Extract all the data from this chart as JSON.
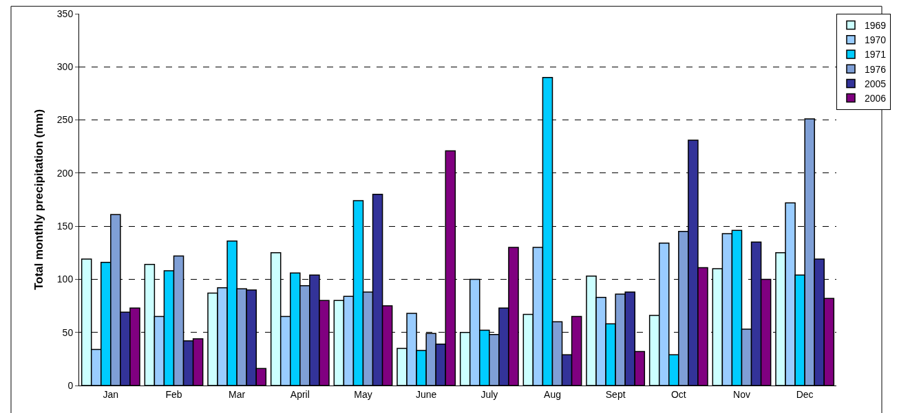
{
  "chart_data": {
    "type": "bar",
    "ylabel": "Total monthly precipitation (mm)",
    "categories": [
      "Jan",
      "Feb",
      "Mar",
      "April",
      "May",
      "June",
      "July",
      "Aug",
      "Sept",
      "Oct",
      "Nov",
      "Dec"
    ],
    "series": [
      {
        "name": "1969",
        "color": "#ccffff",
        "values": [
          119,
          114,
          87,
          125,
          80,
          35,
          50,
          67,
          103,
          66,
          110,
          125
        ]
      },
      {
        "name": "1970",
        "color": "#99ccff",
        "values": [
          34,
          65,
          92,
          65,
          84,
          68,
          100,
          130,
          83,
          134,
          143,
          172
        ]
      },
      {
        "name": "1971",
        "color": "#00ccff",
        "values": [
          116,
          108,
          136,
          106,
          174,
          33,
          52,
          290,
          58,
          29,
          146,
          104
        ]
      },
      {
        "name": "1976",
        "color": "#7f9fd6",
        "values": [
          161,
          122,
          91,
          94,
          88,
          49,
          48,
          60,
          86,
          145,
          53,
          251
        ]
      },
      {
        "name": "2005",
        "color": "#333399",
        "values": [
          69,
          42,
          90,
          104,
          180,
          39,
          73,
          29,
          88,
          231,
          135,
          119
        ]
      },
      {
        "name": "2006",
        "color": "#800080",
        "values": [
          73,
          44,
          16,
          80,
          75,
          221,
          130,
          65,
          32,
          111,
          100,
          82
        ]
      }
    ],
    "ylim": [
      0,
      350
    ],
    "yticks": [
      0,
      50,
      100,
      150,
      200,
      250,
      300,
      350
    ],
    "grid": "y",
    "legend": "top right"
  }
}
